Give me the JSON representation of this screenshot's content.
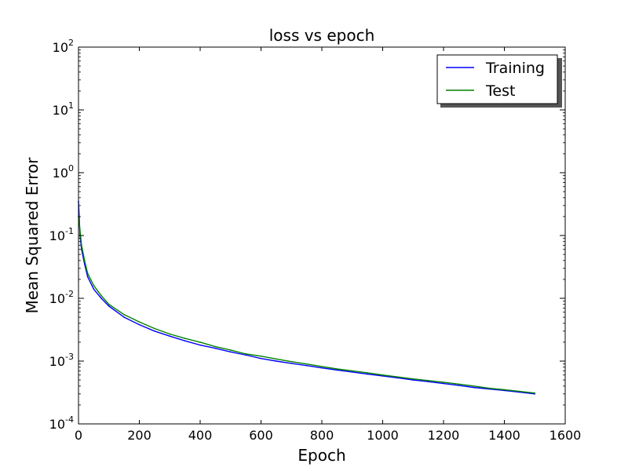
{
  "chart_data": {
    "type": "line",
    "title": "loss vs epoch",
    "xlabel": "Epoch",
    "ylabel": "Mean Squared Error",
    "xlim": [
      0,
      1600
    ],
    "ylim": [
      0.0001,
      100
    ],
    "yscale": "log",
    "grid": false,
    "legend_position": "top-right",
    "x_ticks": [
      {
        "value": 0,
        "label": "0"
      },
      {
        "value": 200,
        "label": "200"
      },
      {
        "value": 400,
        "label": "400"
      },
      {
        "value": 600,
        "label": "600"
      },
      {
        "value": 800,
        "label": "800"
      },
      {
        "value": 1000,
        "label": "1000"
      },
      {
        "value": 1200,
        "label": "1200"
      },
      {
        "value": 1400,
        "label": "1400"
      },
      {
        "value": 1600,
        "label": "1600"
      }
    ],
    "y_ticks": [
      {
        "value": 0.0001,
        "base": "10",
        "exp": "-4"
      },
      {
        "value": 0.001,
        "base": "10",
        "exp": "-3"
      },
      {
        "value": 0.01,
        "base": "10",
        "exp": "-2"
      },
      {
        "value": 0.1,
        "base": "10",
        "exp": "-1"
      },
      {
        "value": 1,
        "base": "10",
        "exp": "0"
      },
      {
        "value": 10,
        "base": "10",
        "exp": "1"
      },
      {
        "value": 100,
        "base": "10",
        "exp": "2"
      }
    ],
    "x": [
      0,
      5,
      10,
      20,
      30,
      50,
      75,
      100,
      150,
      200,
      250,
      300,
      350,
      400,
      450,
      500,
      550,
      600,
      650,
      700,
      750,
      800,
      850,
      900,
      950,
      1000,
      1050,
      1100,
      1150,
      1200,
      1250,
      1300,
      1350,
      1400,
      1450,
      1500
    ],
    "series": [
      {
        "name": "Training",
        "color": "#0000ff",
        "values": [
          0.35,
          0.1,
          0.06,
          0.035,
          0.022,
          0.014,
          0.01,
          0.0075,
          0.005,
          0.0038,
          0.003,
          0.0025,
          0.0021,
          0.0018,
          0.0016,
          0.0014,
          0.00125,
          0.0011,
          0.001,
          0.00092,
          0.00085,
          0.00078,
          0.00072,
          0.00067,
          0.00062,
          0.00058,
          0.00054,
          0.0005,
          0.00047,
          0.00044,
          0.00041,
          0.00038,
          0.00036,
          0.00034,
          0.00032,
          0.0003
        ]
      },
      {
        "name": "Test",
        "color": "#008000",
        "values": [
          0.2,
          0.12,
          0.07,
          0.04,
          0.025,
          0.016,
          0.011,
          0.008,
          0.0055,
          0.0042,
          0.0033,
          0.0027,
          0.0023,
          0.002,
          0.0017,
          0.0015,
          0.0013,
          0.0012,
          0.00108,
          0.00098,
          0.0009,
          0.00082,
          0.00075,
          0.0007,
          0.00065,
          0.0006,
          0.00056,
          0.00052,
          0.00049,
          0.00046,
          0.00043,
          0.0004,
          0.00037,
          0.00035,
          0.00033,
          0.00031
        ]
      }
    ]
  }
}
